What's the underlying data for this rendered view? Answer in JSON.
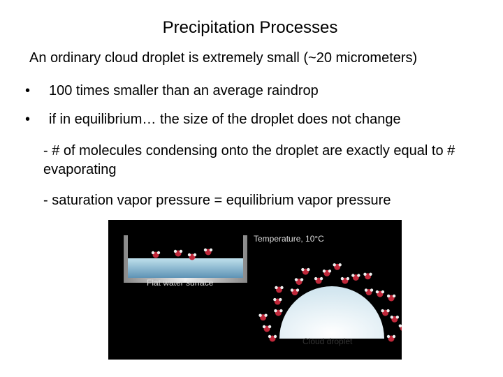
{
  "title": "Precipitation Processes",
  "intro": "An ordinary cloud droplet is extremely small (~20 micrometers)",
  "bullets": [
    "100 times smaller than an average raindrop",
    "if in equilibrium… the size of the droplet does not change"
  ],
  "sub_points": [
    "- # of molecules condensing onto the droplet are exactly equal to # evaporating",
    "- saturation vapor pressure = equilibrium vapor pressure"
  ],
  "figure": {
    "temperature_label": "Temperature, 10°C",
    "flat_label": "Flat water surface",
    "droplet_label": "Cloud droplet"
  }
}
